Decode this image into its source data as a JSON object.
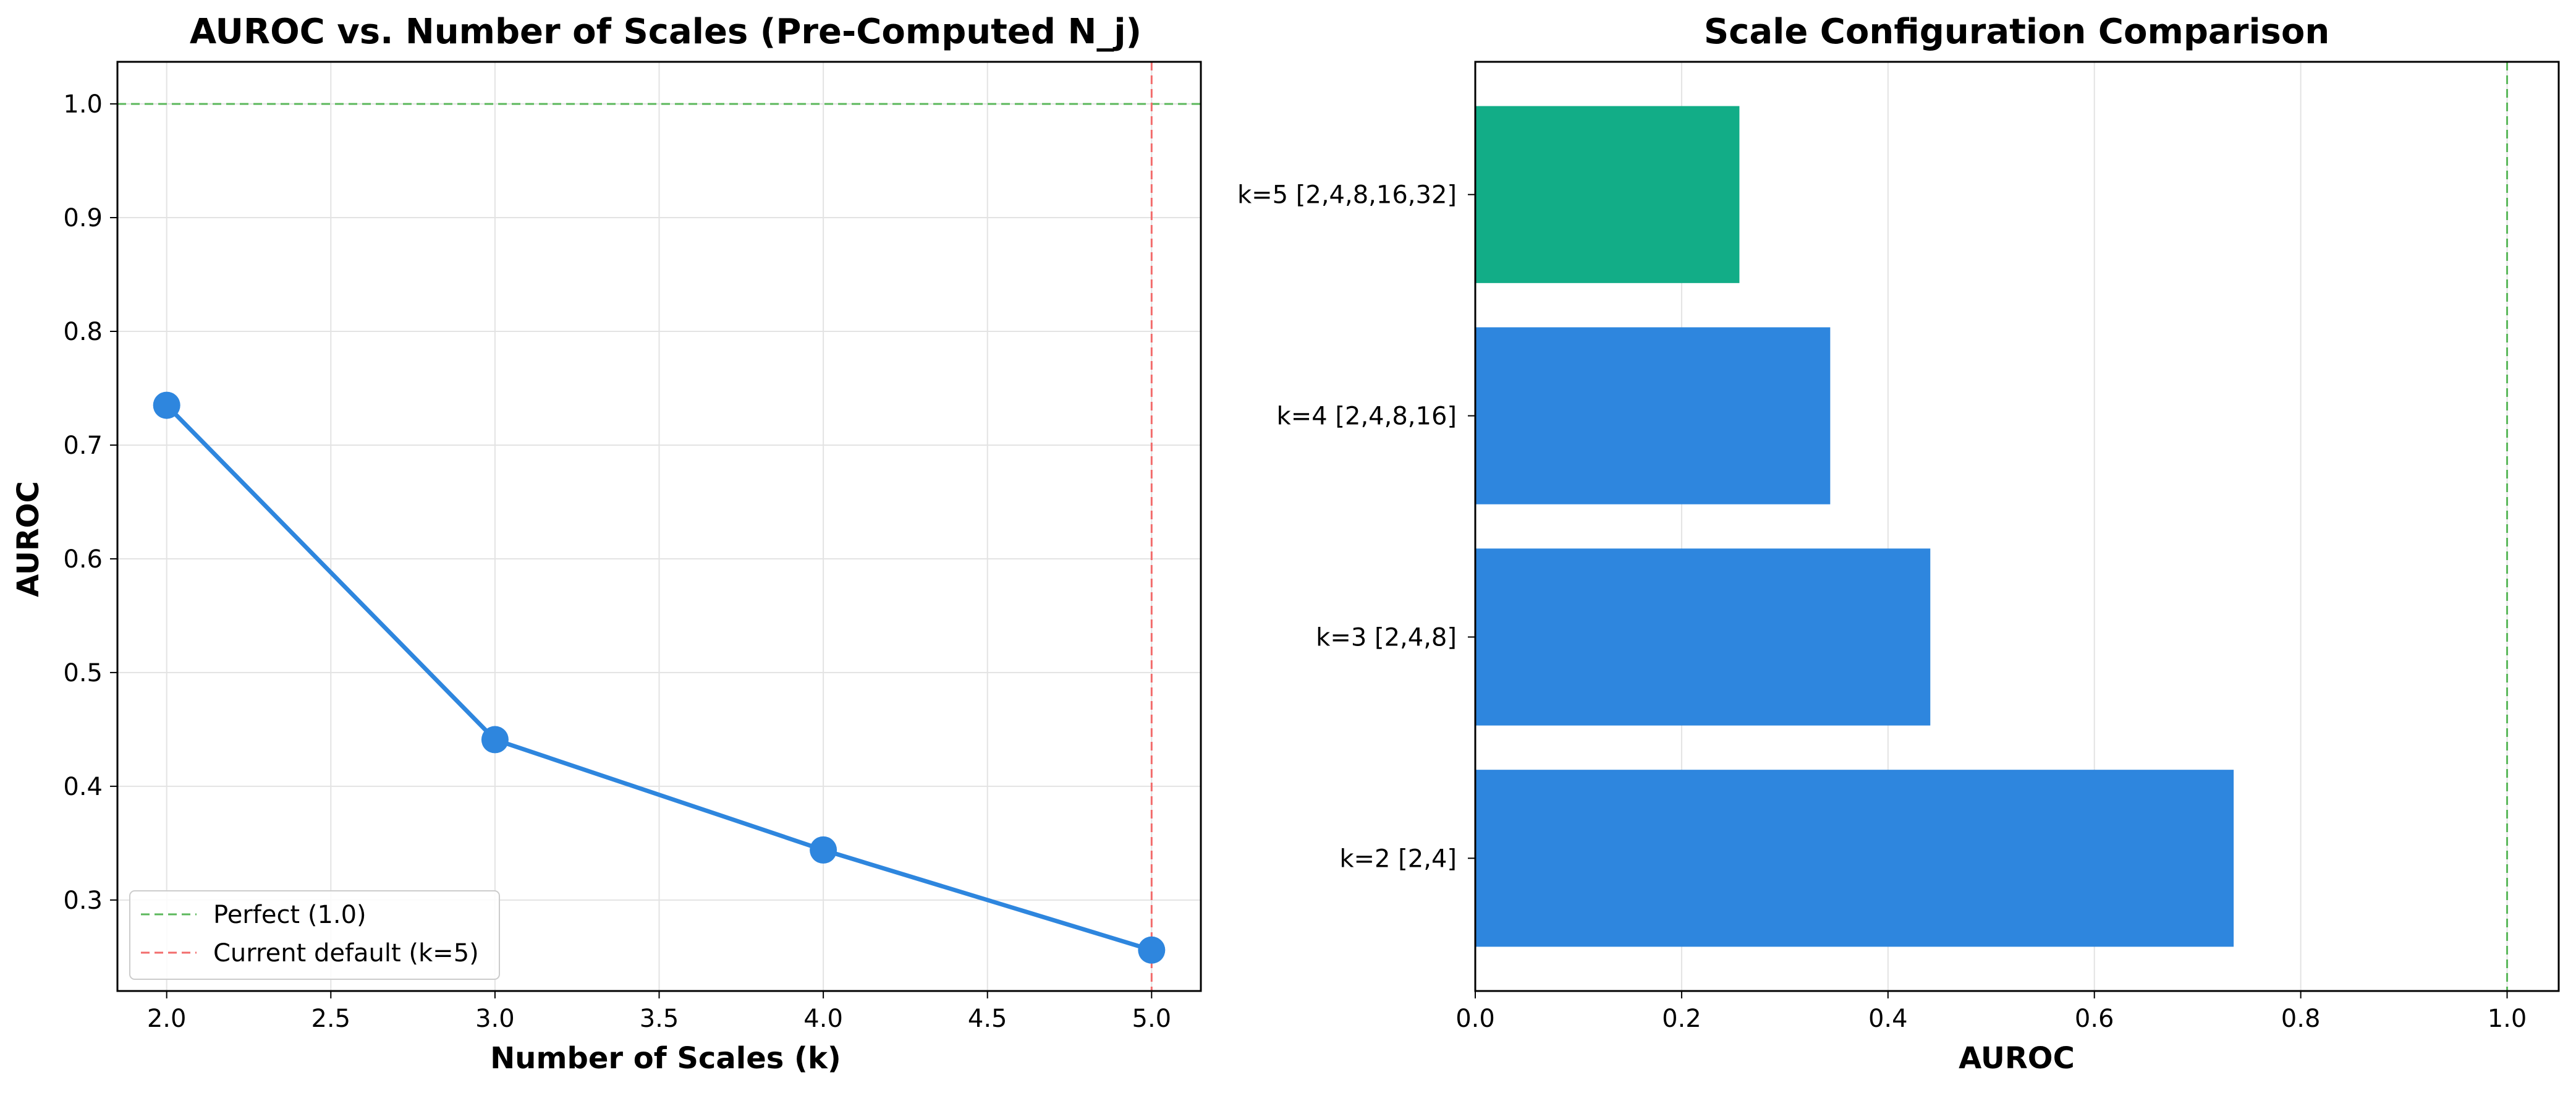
{
  "chart_data": [
    {
      "type": "line",
      "title": "AUROC vs. Number of Scales (Pre-Computed N_j)",
      "xlabel": "Number of Scales (k)",
      "ylabel": "AUROC",
      "x": [
        2,
        3,
        4,
        5
      ],
      "series": [
        {
          "values": [
            0.735,
            0.441,
            0.344,
            0.256
          ],
          "color": "#2e86de"
        }
      ],
      "xlim": [
        1.85,
        5.15
      ],
      "ylim": [
        0.22,
        1.037
      ],
      "xticks": [
        2.0,
        2.5,
        3.0,
        3.5,
        4.0,
        4.5,
        5.0
      ],
      "xtick_labels": [
        "2.0",
        "2.5",
        "3.0",
        "3.5",
        "4.0",
        "4.5",
        "5.0"
      ],
      "yticks": [
        0.3,
        0.4,
        0.5,
        0.6,
        0.7,
        0.8,
        0.9,
        1.0
      ],
      "ytick_labels": [
        "0.3",
        "0.4",
        "0.5",
        "0.6",
        "0.7",
        "0.8",
        "0.9",
        "1.0"
      ],
      "reference_lines": [
        {
          "orientation": "horizontal",
          "value": 1.0,
          "color": "#5cb85c",
          "label": "Perfect (1.0)"
        },
        {
          "orientation": "vertical",
          "value": 5.0,
          "color": "#f26b6b",
          "label": "Current default (k=5)"
        }
      ],
      "grid": true,
      "legend_position": "lower-left"
    },
    {
      "type": "bar",
      "orientation": "horizontal",
      "title": "Scale Configuration Comparison",
      "xlabel": "AUROC",
      "categories": [
        "k=2 [2,4]",
        "k=3 [2,4,8]",
        "k=4 [2,4,8,16]",
        "k=5 [2,4,8,16,32]"
      ],
      "values": [
        0.735,
        0.441,
        0.344,
        0.256
      ],
      "colors": [
        "#2e86de",
        "#2e86de",
        "#2e86de",
        "#12ad87"
      ],
      "xlim": [
        0,
        1.05
      ],
      "xticks": [
        0.0,
        0.2,
        0.4,
        0.6,
        0.8,
        1.0
      ],
      "xtick_labels": [
        "0.0",
        "0.2",
        "0.4",
        "0.6",
        "0.8",
        "1.0"
      ],
      "reference_lines": [
        {
          "orientation": "vertical",
          "value": 1.0,
          "color": "#5cb85c"
        }
      ],
      "grid": true
    }
  ]
}
